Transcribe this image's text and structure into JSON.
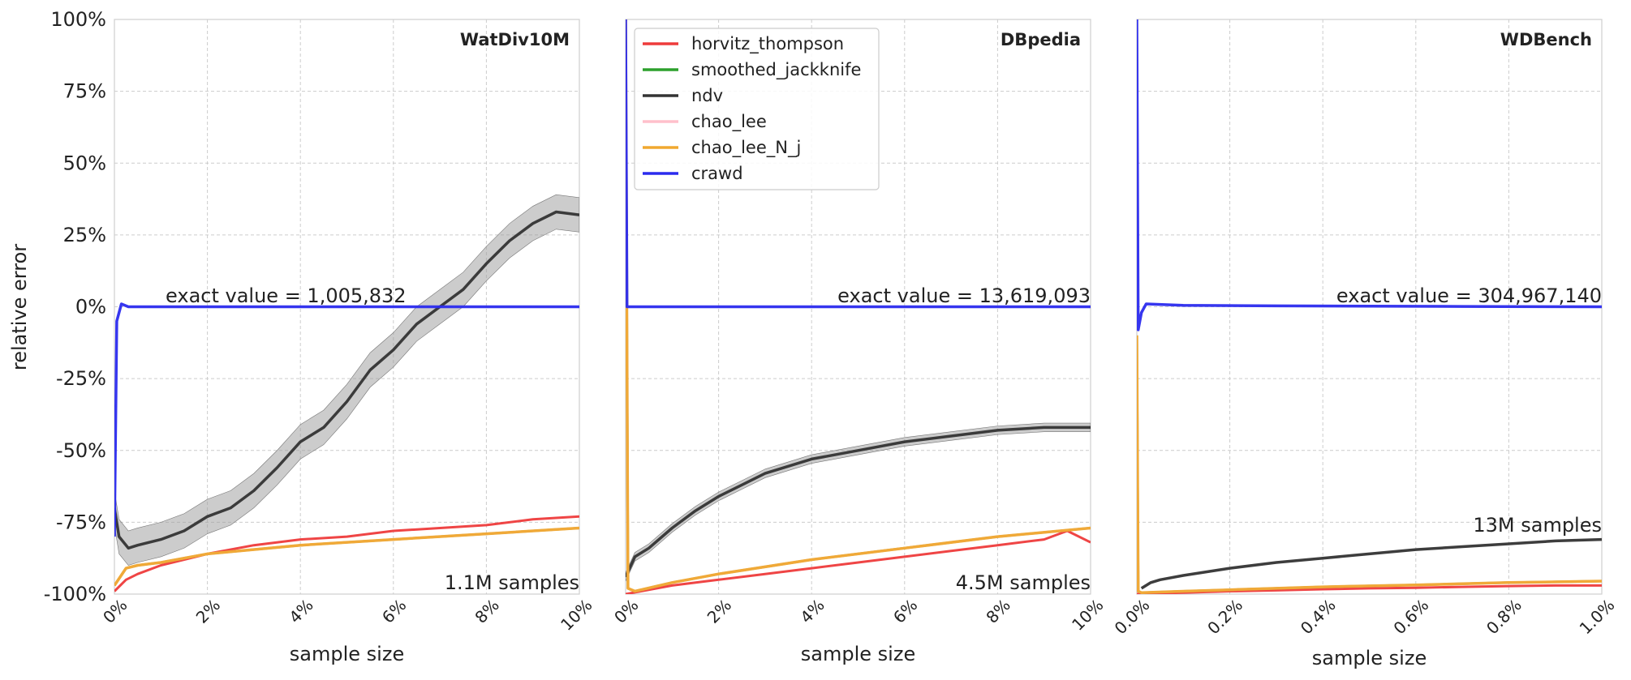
{
  "figure": {
    "ylabel": "relative error",
    "xlabel": "sample size",
    "legend_placement": "upper-left of middle panel"
  },
  "chart_data": [
    {
      "type": "line",
      "title": "WatDiv10M",
      "xlabel": "sample size",
      "ylabel": "relative error",
      "x_unit": "% of triples sampled",
      "y_unit": "% relative error",
      "xlim": [
        0,
        10
      ],
      "ylim": [
        -100,
        100
      ],
      "xticks": [
        "0%",
        "2%",
        "4%",
        "6%",
        "8%",
        "10%"
      ],
      "yticks": [
        "-100%",
        "-75%",
        "-50%",
        "-25%",
        "0%",
        "25%",
        "50%",
        "75%",
        "100%"
      ],
      "grid": true,
      "exact_label": "exact value = 1,005,832",
      "samples_label": "1.1M samples",
      "series": [
        {
          "name": "horvitz_thompson",
          "color": "#ee3b3b",
          "x": [
            0,
            0.25,
            0.5,
            1,
            1.5,
            2,
            3,
            4,
            5,
            6,
            7,
            8,
            9,
            10
          ],
          "y": [
            -99,
            -95,
            -93,
            -90,
            -88,
            -86,
            -83,
            -81,
            -80,
            -78,
            -77,
            -76,
            -74,
            -73
          ]
        },
        {
          "name": "smoothed_jackknife",
          "color": "#2ca02c",
          "x": [
            0,
            0.25,
            0.5,
            1,
            2,
            4,
            6,
            8,
            10
          ],
          "y": [
            -97,
            -91,
            -90,
            -89,
            -86,
            -83,
            -81,
            -79,
            -77
          ]
        },
        {
          "name": "ndv",
          "color": "#333333",
          "x": [
            0,
            0.1,
            0.3,
            0.5,
            1,
            1.5,
            2,
            2.5,
            3,
            3.5,
            4,
            4.5,
            5,
            5.5,
            6,
            6.5,
            7,
            7.5,
            8,
            8.5,
            9,
            9.5,
            10
          ],
          "y": [
            -70,
            -80,
            -84,
            -83,
            -81,
            -78,
            -73,
            -70,
            -64,
            -56,
            -47,
            -42,
            -33,
            -22,
            -15,
            -6,
            0,
            6,
            15,
            23,
            29,
            33,
            32
          ],
          "band": 6
        },
        {
          "name": "chao_lee",
          "color": "#ffc0cb",
          "x": [
            0,
            0.25,
            0.5,
            1,
            2,
            4,
            6,
            8,
            10
          ],
          "y": [
            -97,
            -91,
            -90,
            -89,
            -86,
            -83,
            -81,
            -79,
            -77
          ]
        },
        {
          "name": "chao_lee_N_j",
          "color": "#f0a830",
          "x": [
            0,
            0.25,
            0.5,
            1,
            2,
            4,
            6,
            8,
            10
          ],
          "y": [
            -97,
            -91,
            -90,
            -89,
            -86,
            -83,
            -81,
            -79,
            -77
          ]
        },
        {
          "name": "crawd",
          "color": "#2b2bee",
          "x": [
            0,
            0.05,
            0.15,
            0.3,
            1,
            2,
            4,
            6,
            8,
            10
          ],
          "y": [
            -80,
            -5,
            1,
            0,
            0,
            0,
            0,
            0,
            0,
            0
          ]
        }
      ]
    },
    {
      "type": "line",
      "title": "DBpedia",
      "xlabel": "sample size",
      "x_unit": "% of triples sampled",
      "y_unit": "% relative error",
      "xlim": [
        0,
        10
      ],
      "ylim": [
        -100,
        100
      ],
      "xticks": [
        "0%",
        "2%",
        "4%",
        "6%",
        "8%",
        "10%"
      ],
      "grid": true,
      "exact_label": "exact value = 13,619,093",
      "samples_label": "4.5M samples",
      "series": [
        {
          "name": "horvitz_thompson",
          "color": "#ee3b3b",
          "x": [
            0,
            1,
            2,
            3,
            4,
            5,
            6,
            7,
            8,
            9,
            9.5,
            10
          ],
          "y": [
            -100,
            -97,
            -95,
            -93,
            -91,
            -89,
            -87,
            -85,
            -83,
            -81,
            -78,
            -82
          ]
        },
        {
          "name": "smoothed_jackknife",
          "color": "#2ca02c",
          "x": [
            0,
            0.05,
            0.2,
            1,
            2,
            4,
            6,
            8,
            10
          ],
          "y": [
            100,
            -98,
            -99,
            -96,
            -93,
            -88,
            -84,
            -80,
            -77
          ]
        },
        {
          "name": "ndv",
          "color": "#333333",
          "x": [
            0,
            0.2,
            0.5,
            1,
            1.5,
            2,
            2.5,
            3,
            4,
            5,
            6,
            7,
            8,
            9,
            10
          ],
          "y": [
            -94,
            -87,
            -84,
            -77,
            -71,
            -66,
            -62,
            -58,
            -53,
            -50,
            -47,
            -45,
            -43,
            -42,
            -42
          ],
          "band": 1.5
        },
        {
          "name": "chao_lee",
          "color": "#ffc0cb",
          "x": [
            0,
            0.05,
            0.2,
            1,
            2,
            4,
            6,
            8,
            10
          ],
          "y": [
            100,
            -98,
            -99,
            -96,
            -93,
            -88,
            -84,
            -80,
            -77
          ]
        },
        {
          "name": "chao_lee_N_j",
          "color": "#f0a830",
          "x": [
            0,
            0.05,
            0.2,
            1,
            2,
            4,
            6,
            8,
            10
          ],
          "y": [
            100,
            -98,
            -99,
            -96,
            -93,
            -88,
            -84,
            -80,
            -77
          ]
        },
        {
          "name": "crawd",
          "color": "#2b2bee",
          "x": [
            0,
            0.03,
            0.1,
            0.3,
            1,
            2,
            4,
            6,
            8,
            10
          ],
          "y": [
            100,
            0,
            0,
            0,
            0,
            0,
            0,
            0,
            0,
            0
          ]
        }
      ]
    },
    {
      "type": "line",
      "title": "WDBench",
      "xlabel": "sample size",
      "x_unit": "% of triples sampled",
      "y_unit": "% relative error",
      "xlim": [
        0,
        1
      ],
      "ylim": [
        -100,
        100
      ],
      "xticks": [
        "0.0%",
        "0.2%",
        "0.4%",
        "0.6%",
        "0.8%",
        "1.0%"
      ],
      "grid": true,
      "exact_label": "exact value = 304,967,140",
      "samples_label": "13M samples",
      "series": [
        {
          "name": "horvitz_thompson",
          "color": "#ee3b3b",
          "x": [
            0,
            0.1,
            0.2,
            0.3,
            0.4,
            0.5,
            0.6,
            0.7,
            0.8,
            0.9,
            1.0
          ],
          "y": [
            -100,
            -99.5,
            -99,
            -98.7,
            -98.3,
            -98,
            -97.8,
            -97.5,
            -97.2,
            -97,
            -97
          ]
        },
        {
          "name": "smoothed_jackknife",
          "color": "#2ca02c",
          "x": [
            0,
            0.003,
            0.01,
            0.1,
            0.2,
            0.4,
            0.6,
            0.8,
            1.0
          ],
          "y": [
            -10,
            -99,
            -99.5,
            -99,
            -98.5,
            -97.5,
            -96.8,
            -96,
            -95.5
          ]
        },
        {
          "name": "ndv",
          "color": "#333333",
          "x": [
            0.01,
            0.03,
            0.05,
            0.1,
            0.2,
            0.3,
            0.4,
            0.5,
            0.6,
            0.7,
            0.8,
            0.9,
            1.0
          ],
          "y": [
            -98,
            -96,
            -95,
            -93.5,
            -91,
            -89,
            -87.5,
            -86,
            -84.5,
            -83.5,
            -82.5,
            -81.5,
            -81
          ]
        },
        {
          "name": "chao_lee",
          "color": "#ffc0cb",
          "x": [
            0,
            0.003,
            0.01,
            0.1,
            0.2,
            0.4,
            0.6,
            0.8,
            1.0
          ],
          "y": [
            -10,
            -99,
            -99.5,
            -99,
            -98.5,
            -97.5,
            -96.8,
            -96,
            -95.5
          ]
        },
        {
          "name": "chao_lee_N_j",
          "color": "#f0a830",
          "x": [
            0,
            0.003,
            0.01,
            0.1,
            0.2,
            0.4,
            0.6,
            0.8,
            1.0
          ],
          "y": [
            -10,
            -99,
            -99.5,
            -99,
            -98.5,
            -97.5,
            -96.8,
            -96,
            -95.5
          ]
        },
        {
          "name": "crawd",
          "color": "#2b2bee",
          "x": [
            0,
            0.003,
            0.01,
            0.02,
            0.1,
            0.3,
            0.5,
            0.7,
            1.0
          ],
          "y": [
            100,
            -8,
            -2,
            1,
            0.5,
            0.3,
            0.2,
            0.1,
            0
          ]
        }
      ]
    }
  ]
}
